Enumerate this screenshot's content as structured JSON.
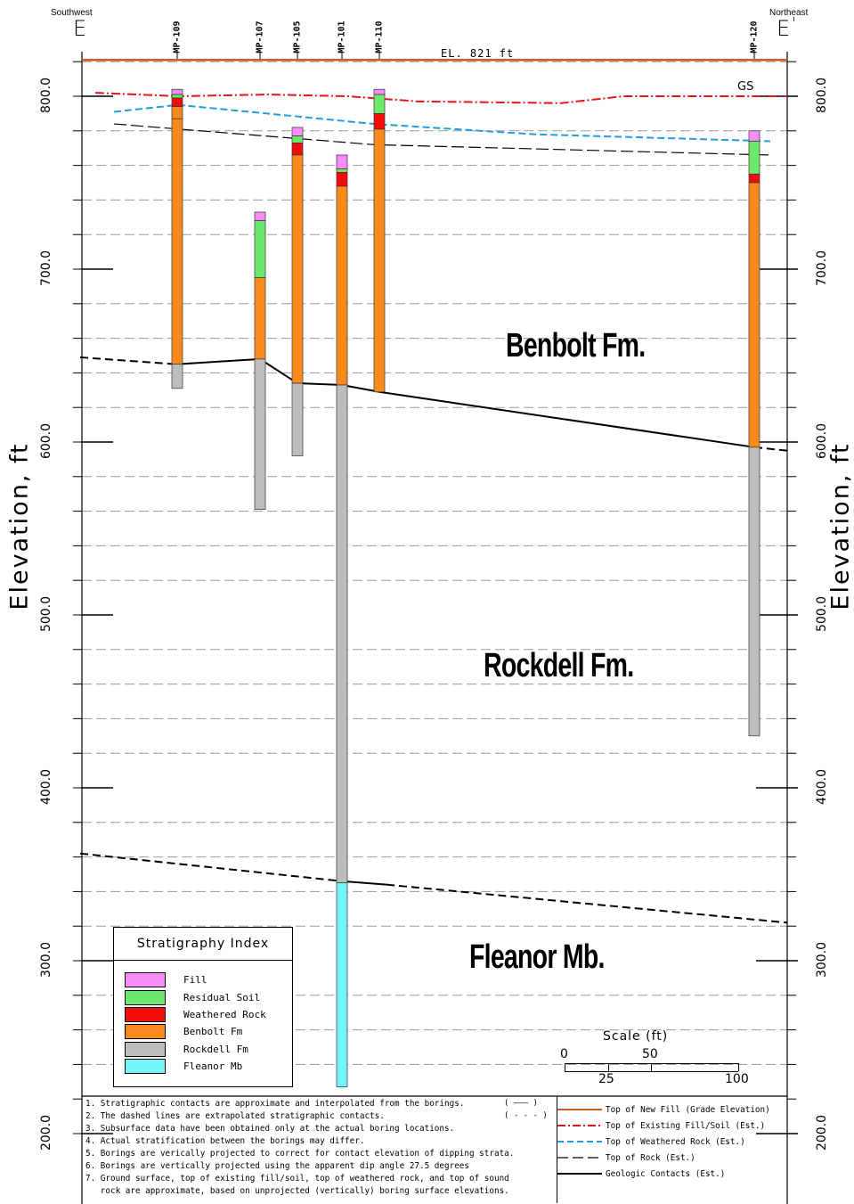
{
  "header": {
    "left_direction": "Southwest",
    "right_direction": "Northeast",
    "left_section": "E",
    "right_section": "E",
    "right_prime": "'"
  },
  "axis": {
    "title": "Elevation, ft",
    "ticks": [
      "800.0",
      "700.0",
      "600.0",
      "500.0",
      "400.0",
      "300.0",
      "200.0"
    ]
  },
  "grade": {
    "label": "EL. 821 ft",
    "elevation": 821,
    "gs_label": "GS"
  },
  "borings": [
    {
      "name": "MP-109",
      "layers": [
        {
          "unit": "Fill",
          "top": 804,
          "bottom": 801
        },
        {
          "unit": "Residual Soil",
          "top": 801,
          "bottom": 799
        },
        {
          "unit": "Weathered Rock",
          "top": 799,
          "bottom": 794
        },
        {
          "unit": "Benbolt Fm",
          "top": 794,
          "bottom": 787
        },
        {
          "unit": "Benbolt Fm",
          "top": 787,
          "bottom": 645
        },
        {
          "unit": "Rockdell Fm",
          "top": 645,
          "bottom": 631
        }
      ]
    },
    {
      "name": "MP-107",
      "layers": [
        {
          "unit": "Fill",
          "top": 733,
          "bottom": 728
        },
        {
          "unit": "Residual Soil",
          "top": 728,
          "bottom": 695
        },
        {
          "unit": "Benbolt Fm",
          "top": 695,
          "bottom": 648
        },
        {
          "unit": "Rockdell Fm",
          "top": 648,
          "bottom": 561
        }
      ]
    },
    {
      "name": "MP-105",
      "layers": [
        {
          "unit": "Fill",
          "top": 782,
          "bottom": 777
        },
        {
          "unit": "Residual Soil",
          "top": 777,
          "bottom": 773
        },
        {
          "unit": "Weathered Rock",
          "top": 773,
          "bottom": 766
        },
        {
          "unit": "Benbolt Fm",
          "top": 766,
          "bottom": 634
        },
        {
          "unit": "Rockdell Fm",
          "top": 634,
          "bottom": 592
        }
      ]
    },
    {
      "name": "MP-101",
      "layers": [
        {
          "unit": "Fill",
          "top": 766,
          "bottom": 758
        },
        {
          "unit": "Residual Soil",
          "top": 758,
          "bottom": 756
        },
        {
          "unit": "Weathered Rock",
          "top": 756,
          "bottom": 748
        },
        {
          "unit": "Benbolt Fm",
          "top": 748,
          "bottom": 633
        },
        {
          "unit": "Rockdell Fm",
          "top": 633,
          "bottom": 345
        },
        {
          "unit": "Fleanor Mb",
          "top": 345,
          "bottom": 227
        }
      ]
    },
    {
      "name": "MP-110",
      "layers": [
        {
          "unit": "Fill",
          "top": 804,
          "bottom": 801
        },
        {
          "unit": "Residual Soil",
          "top": 801,
          "bottom": 790
        },
        {
          "unit": "Weathered Rock",
          "top": 790,
          "bottom": 781
        },
        {
          "unit": "Benbolt Fm",
          "top": 781,
          "bottom": 629
        }
      ]
    },
    {
      "name": "MP-120",
      "layers": [
        {
          "unit": "Fill",
          "top": 780,
          "bottom": 774
        },
        {
          "unit": "Residual Soil",
          "top": 774,
          "bottom": 755
        },
        {
          "unit": "Weathered Rock",
          "top": 755,
          "bottom": 750
        },
        {
          "unit": "Benbolt Fm",
          "top": 750,
          "bottom": 597
        },
        {
          "unit": "Rockdell Fm",
          "top": 597,
          "bottom": 430
        }
      ]
    }
  ],
  "formations": [
    "Benbolt Fm.",
    "Rockdell Fm.",
    "Fleanor Mb."
  ],
  "index": {
    "title": "Stratigraphy Index",
    "items": [
      {
        "label": "Fill",
        "color": "#f78df5"
      },
      {
        "label": "Residual Soil",
        "color": "#6ce86c"
      },
      {
        "label": "Weathered Rock",
        "color": "#f20d0d"
      },
      {
        "label": "Benbolt Fm",
        "color": "#fb8a1e"
      },
      {
        "label": "Rockdell Fm",
        "color": "#bdbdbd"
      },
      {
        "label": "Fleanor Mb",
        "color": "#74f5f8"
      }
    ]
  },
  "scale": {
    "title": "Scale (ft)",
    "top_labels": [
      "0",
      "50"
    ],
    "bottom_labels": [
      "25",
      "100"
    ]
  },
  "notes": [
    "1. Stratigraphic contacts are approximate and interpolated from the borings.",
    "2. The dashed lines are extrapolated stratigraphic contacts.",
    "3. Subsurface data have been obtained only at the actual boring locations.",
    "4. Actual stratification between the borings may differ.",
    "5. Borings are verically projected to correct for contact elevation of dipping strata.",
    "6. Borings are vertically projected using the apparent dip angle 27.5 degrees",
    "7. Ground surface, top of existing fill/soil, top of weathered rock, and top of sound",
    "   rock are approximate, based on unprojected (vertically) boring surface elevations."
  ],
  "note_marks": {
    "solid": "( ——— )",
    "dashed": "( - - - )"
  },
  "legend": [
    {
      "label": "Top of New Fill (Grade Elevation)",
      "color": "#c0622a",
      "style": "solid"
    },
    {
      "label": "Top of Existing Fill/Soil (Est.)",
      "color": "#e0161f",
      "style": "dashdot"
    },
    {
      "label": "Top of Weathered Rock (Est.)",
      "color": "#1f9fd8",
      "style": "dashed"
    },
    {
      "label": "Top of Rock (Est.)",
      "color": "#000000",
      "style": "longdash"
    },
    {
      "label": "Geologic Contacts (Est.)",
      "color": "#000000",
      "style": "solid"
    }
  ]
}
